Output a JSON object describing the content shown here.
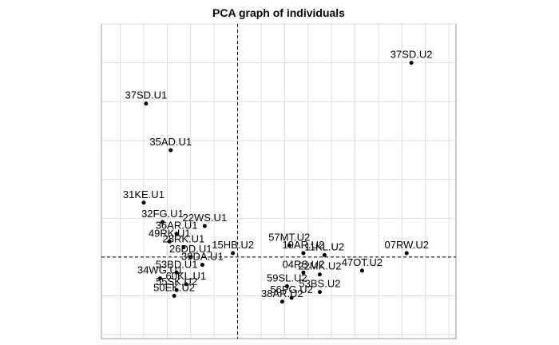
{
  "chart_data": {
    "type": "scatter",
    "title": "PCA graph of individuals",
    "xlabel": "",
    "ylabel": "",
    "grid": true,
    "reference_lines": "dashed lines at x=0 and y=0",
    "xlim": [
      -5.8,
      9.3
    ],
    "ylim": [
      -2.1,
      6.0
    ],
    "points": [
      {
        "label": "37SD.U2",
        "x": 7.4,
        "y": 5.0
      },
      {
        "label": "37SD.U1",
        "x": -3.9,
        "y": 3.95
      },
      {
        "label": "35AD.U1",
        "x": -2.85,
        "y": 2.75
      },
      {
        "label": "31KE.U1",
        "x": -4.0,
        "y": 1.4
      },
      {
        "label": "32FG.U1",
        "x": -3.2,
        "y": 0.9
      },
      {
        "label": "22WS.U1",
        "x": -1.4,
        "y": 0.8
      },
      {
        "label": "36AR.U1",
        "x": -2.6,
        "y": 0.6
      },
      {
        "label": "49RK.U1",
        "x": -2.9,
        "y": 0.4
      },
      {
        "label": "28RK.U1",
        "x": -2.3,
        "y": 0.25
      },
      {
        "label": "15HB.U2",
        "x": -0.2,
        "y": 0.1
      },
      {
        "label": "26DD.U1",
        "x": -2.0,
        "y": 0.0
      },
      {
        "label": "57MT.U2",
        "x": 2.2,
        "y": 0.3
      },
      {
        "label": "19AR.U2",
        "x": 2.8,
        "y": 0.1
      },
      {
        "label": "11KL.U2",
        "x": 3.7,
        "y": 0.05
      },
      {
        "label": "07RW.U2",
        "x": 7.2,
        "y": 0.1
      },
      {
        "label": "39DA.U1",
        "x": -1.5,
        "y": -0.2
      },
      {
        "label": "53BD.U1",
        "x": -2.6,
        "y": -0.4
      },
      {
        "label": "34WG.U1",
        "x": -3.3,
        "y": -0.55
      },
      {
        "label": "47OT.U2",
        "x": 5.3,
        "y": -0.35
      },
      {
        "label": "04RS.U2",
        "x": 2.8,
        "y": -0.4
      },
      {
        "label": "22MK.U2",
        "x": 3.5,
        "y": -0.45
      },
      {
        "label": "59SL.U2",
        "x": 2.1,
        "y": -0.75
      },
      {
        "label": "53BS.U2",
        "x": 3.5,
        "y": -0.9
      },
      {
        "label": "56PG.U2",
        "x": 2.3,
        "y": -1.05
      },
      {
        "label": "38AR.U2",
        "x": 1.9,
        "y": -1.15
      },
      {
        "label": "55SK.U2",
        "x": -2.6,
        "y": -0.85
      },
      {
        "label": "50EK.U2",
        "x": -2.7,
        "y": -1.0
      },
      {
        "label": "60KL.U1",
        "x": -2.2,
        "y": -0.7
      }
    ]
  }
}
